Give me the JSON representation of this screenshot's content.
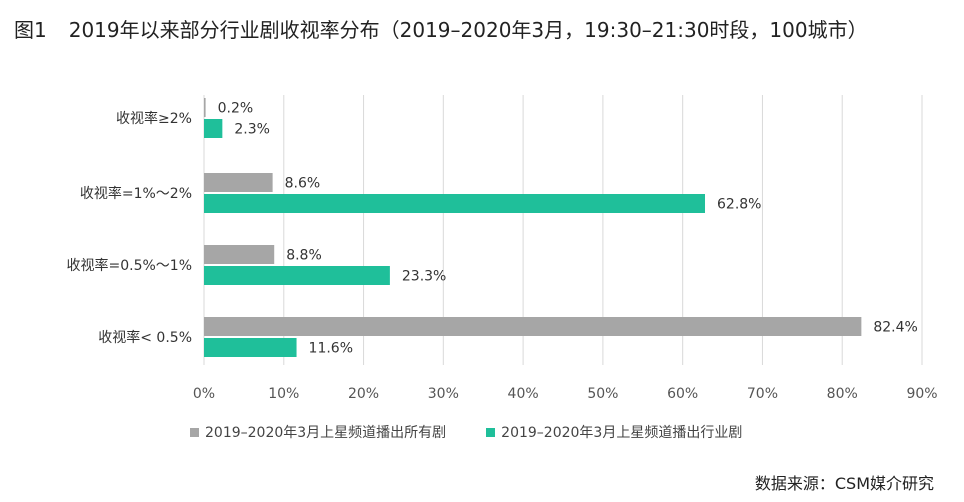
{
  "title": {
    "figure_label": "图1",
    "text": "2019年以来部分行业剧收视率分布（2019–2020年3月，19:30–21:30时段，100城市）"
  },
  "source": "数据来源：CSM媒介研究",
  "colors": {
    "series1": "#a6a6a6",
    "series2": "#1fbf9a",
    "grid": "#d9d9d9"
  },
  "chart_data": {
    "type": "bar",
    "orientation": "horizontal",
    "categories": [
      "收视率≥2%",
      "收视率=1%～2%",
      "收视率=0.5%～1%",
      "收视率< 0.5%"
    ],
    "series": [
      {
        "name": "2019–2020年3月上星频道播出所有剧",
        "values": [
          0.2,
          8.6,
          8.8,
          82.4
        ],
        "labels": [
          "0.2%",
          "8.6%",
          "8.8%",
          "82.4%"
        ]
      },
      {
        "name": "2019–2020年3月上星频道播出行业剧",
        "values": [
          2.3,
          62.8,
          23.3,
          11.6
        ],
        "labels": [
          "2.3%",
          "62.8%",
          "23.3%",
          "11.6%"
        ]
      }
    ],
    "xlim": [
      0,
      90
    ],
    "xticks": [
      "0%",
      "10%",
      "20%",
      "30%",
      "40%",
      "50%",
      "60%",
      "70%",
      "80%",
      "90%"
    ],
    "grid": true,
    "legend_position": "bottom"
  }
}
